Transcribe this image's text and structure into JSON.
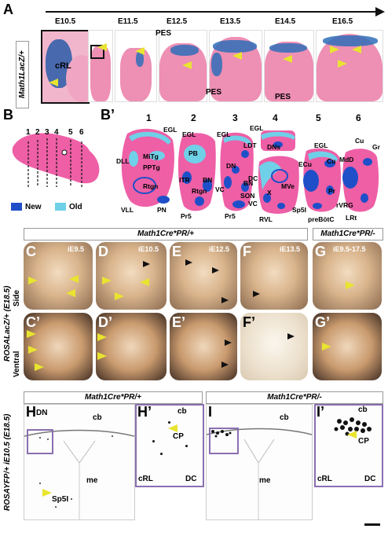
{
  "panel_labels": {
    "A": "A",
    "B": "B",
    "B_prime": "B’",
    "C": "C",
    "D": "D",
    "E": "E",
    "F": "F",
    "G": "G",
    "C_prime": "C’",
    "D_prime": "D’",
    "E_prime": "E’",
    "F_prime": "F’",
    "G_prime": "G’",
    "H": "H",
    "H_prime": "H’",
    "I": "I",
    "I_prime": "I’"
  },
  "row_a": {
    "side_label": "Math1LacZ/+",
    "ages": [
      "E10.5",
      "E11.5",
      "E12.5",
      "E13.5",
      "E14.5",
      "E16.5"
    ],
    "annotations": {
      "crl": "cRL",
      "pes_top": "PES",
      "pes_mid": "PES",
      "pes_bottom": "PES"
    }
  },
  "panel_b": {
    "column_numbers": [
      "1",
      "2",
      "3",
      "4",
      "5",
      "6"
    ],
    "legend": [
      {
        "label": "New",
        "color": "#1f4fc8"
      },
      {
        "label": "Old",
        "color": "#6fd0e8"
      }
    ]
  },
  "panel_b_prime": {
    "section_numbers": [
      "1",
      "2",
      "3",
      "4",
      "5",
      "6"
    ],
    "s1": [
      "EGL",
      "DLL",
      "MiTg",
      "PPTg",
      "Rtgn",
      "VLL",
      "PN"
    ],
    "s2": [
      "PB",
      "ITR",
      "BN",
      "Rtgn",
      "Pr5"
    ],
    "s3": [
      "EGL",
      "LDT",
      "DN",
      "VC",
      "BN",
      "SON",
      "Pr5"
    ],
    "s4": [
      "EGL",
      "DNs",
      "DC",
      "X",
      "MVe",
      "VC",
      "RVL"
    ],
    "s5": [
      "EGL",
      "ECu",
      "Cu",
      "Pr",
      "Sp5I",
      "preBötC"
    ],
    "s6": [
      "Cu",
      "Gr",
      "MdD",
      "rVRG",
      "LRt"
    ]
  },
  "row_c": {
    "header_left": "Math1Cre*PR/+",
    "header_right": "Math1Cre*PR/-",
    "side_label": "ROSALacZ/+ (E18.5)",
    "view_side": "Side",
    "view_ventral": "Ventral",
    "ages": [
      "iE9.5",
      "iE10.5",
      "iE12.5",
      "iE13.5",
      "iE9.5-17.5"
    ]
  },
  "row_h": {
    "header_left": "Math1Cre*PR/+",
    "header_right": "Math1Cre*PR/-",
    "side_label": "ROSAYFP/+ iE10.5 (E18.5)",
    "h": {
      "dn": "DN",
      "cb": "cb",
      "me": "me",
      "sp5i": "Sp5I"
    },
    "hp": {
      "cb": "cb",
      "cp": "CP",
      "crl": "cRL",
      "dc": "DC"
    },
    "i": {
      "cb": "cb",
      "me": "me"
    },
    "ip": {
      "cb": "cb",
      "cp": "CP",
      "crl": "cRL",
      "dc": "DC"
    }
  }
}
